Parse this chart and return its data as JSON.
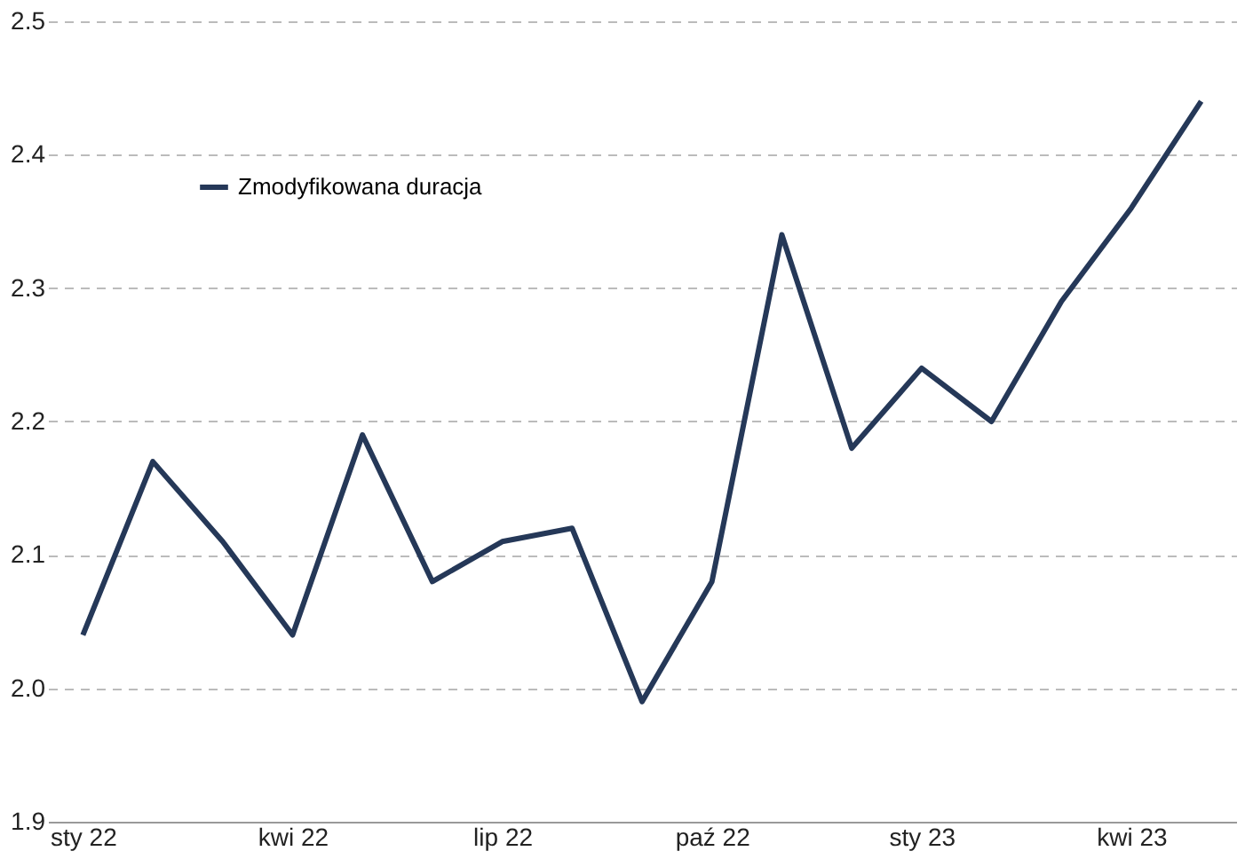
{
  "chart_data": {
    "type": "line",
    "categories": [
      "sty 22",
      null,
      null,
      "kwi 22",
      null,
      null,
      "lip 22",
      null,
      null,
      "paź 22",
      null,
      null,
      "sty 23",
      null,
      null,
      "kwi 23",
      null
    ],
    "series": [
      {
        "name": "Zmodyfikowana duracja",
        "color": "#253858",
        "values": [
          2.04,
          2.17,
          2.11,
          2.04,
          2.19,
          2.08,
          2.11,
          2.12,
          1.99,
          2.08,
          2.34,
          2.18,
          2.24,
          2.2,
          2.29,
          2.36,
          2.44
        ]
      }
    ],
    "ylim": [
      1.9,
      2.5
    ],
    "yticks": [
      1.9,
      {
        "value": 2,
        "label": "2.0"
      },
      2.1,
      2.2,
      2.3,
      2.4,
      2.5
    ],
    "grid": "y",
    "legend": "top left",
    "marker": "none",
    "line_style": "solid"
  }
}
